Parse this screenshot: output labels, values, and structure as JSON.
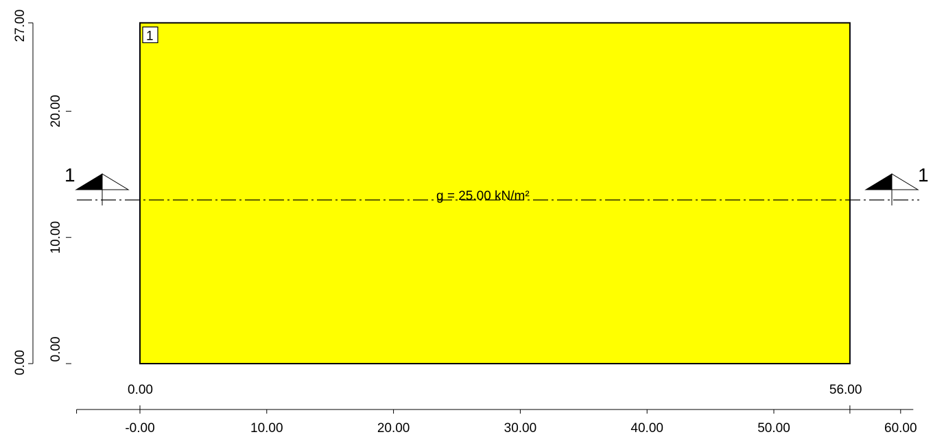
{
  "plate": {
    "number": "1",
    "fill_color": "#ffff00",
    "x_range": [
      0,
      56
    ],
    "y_range": [
      0,
      27
    ]
  },
  "load_label": "g = 25.00 kN/m²",
  "section": {
    "left_label": "1",
    "right_label": "1",
    "y": 13
  },
  "dimensions": {
    "left_value": "0.00",
    "right_value": "56.00"
  },
  "x_axis": {
    "ticks": [
      {
        "value": 0,
        "label": "-0.00"
      },
      {
        "value": 10,
        "label": "10.00"
      },
      {
        "value": 20,
        "label": "20.00"
      },
      {
        "value": 30,
        "label": "30.00"
      },
      {
        "value": 40,
        "label": "40.00"
      },
      {
        "value": 50,
        "label": "50.00"
      },
      {
        "value": 60,
        "label": "60.00"
      }
    ],
    "range": [
      -5,
      61
    ]
  },
  "y_axis_outer": {
    "ticks": [
      {
        "value": 0,
        "label": "0.00"
      },
      {
        "value": 27,
        "label": "27.00"
      }
    ]
  },
  "y_axis_inner": {
    "ticks": [
      {
        "value": 0,
        "label": "0.00"
      },
      {
        "value": 10,
        "label": "10.00"
      },
      {
        "value": 20,
        "label": "20.00"
      }
    ]
  }
}
